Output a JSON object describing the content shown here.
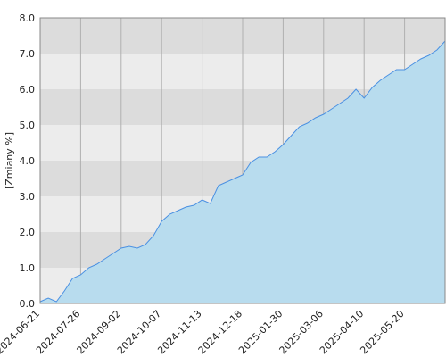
{
  "chart_data": {
    "type": "area",
    "y_label": "[Zmiany %]",
    "categories": [
      "2024-06-21",
      null,
      null,
      null,
      null,
      "2024-07-26",
      null,
      null,
      null,
      null,
      "2024-09-02",
      null,
      null,
      null,
      null,
      "2024-10-07",
      null,
      null,
      null,
      null,
      "2024-11-13",
      null,
      null,
      null,
      null,
      "2024-12-18",
      null,
      null,
      null,
      null,
      "2025-01-30",
      null,
      null,
      null,
      null,
      "2025-03-06",
      null,
      null,
      null,
      null,
      "2025-04-10",
      null,
      null,
      null,
      null,
      "2025-05-20",
      null,
      null,
      null,
      null,
      null
    ],
    "values": [
      0.05,
      0.15,
      0.05,
      0.35,
      0.7,
      0.8,
      1.0,
      1.1,
      1.25,
      1.4,
      1.55,
      1.6,
      1.55,
      1.65,
      1.9,
      2.3,
      2.5,
      2.6,
      2.7,
      2.75,
      2.9,
      2.8,
      3.3,
      3.4,
      3.5,
      3.6,
      3.95,
      4.1,
      4.1,
      4.25,
      4.45,
      4.7,
      4.95,
      5.05,
      5.2,
      5.3,
      5.45,
      5.6,
      5.75,
      6.0,
      5.75,
      6.05,
      6.25,
      6.4,
      6.55,
      6.55,
      6.7,
      6.85,
      6.95,
      7.1,
      7.35
    ],
    "color": "#4a90e2",
    "fill": "#b8dcee",
    "ylim": [
      0,
      8
    ],
    "yticks": [
      {
        "value": 0,
        "label": "0.0"
      },
      {
        "value": 1,
        "label": "1.0"
      },
      {
        "value": 2,
        "label": "2.0"
      },
      {
        "value": 3,
        "label": "3.0"
      },
      {
        "value": 4,
        "label": "4.0"
      },
      {
        "value": 5,
        "label": "5.0"
      },
      {
        "value": 6,
        "label": "6.0"
      },
      {
        "value": 7,
        "label": "7.0"
      },
      {
        "value": 8,
        "label": "8.0"
      }
    ],
    "grid": true
  }
}
